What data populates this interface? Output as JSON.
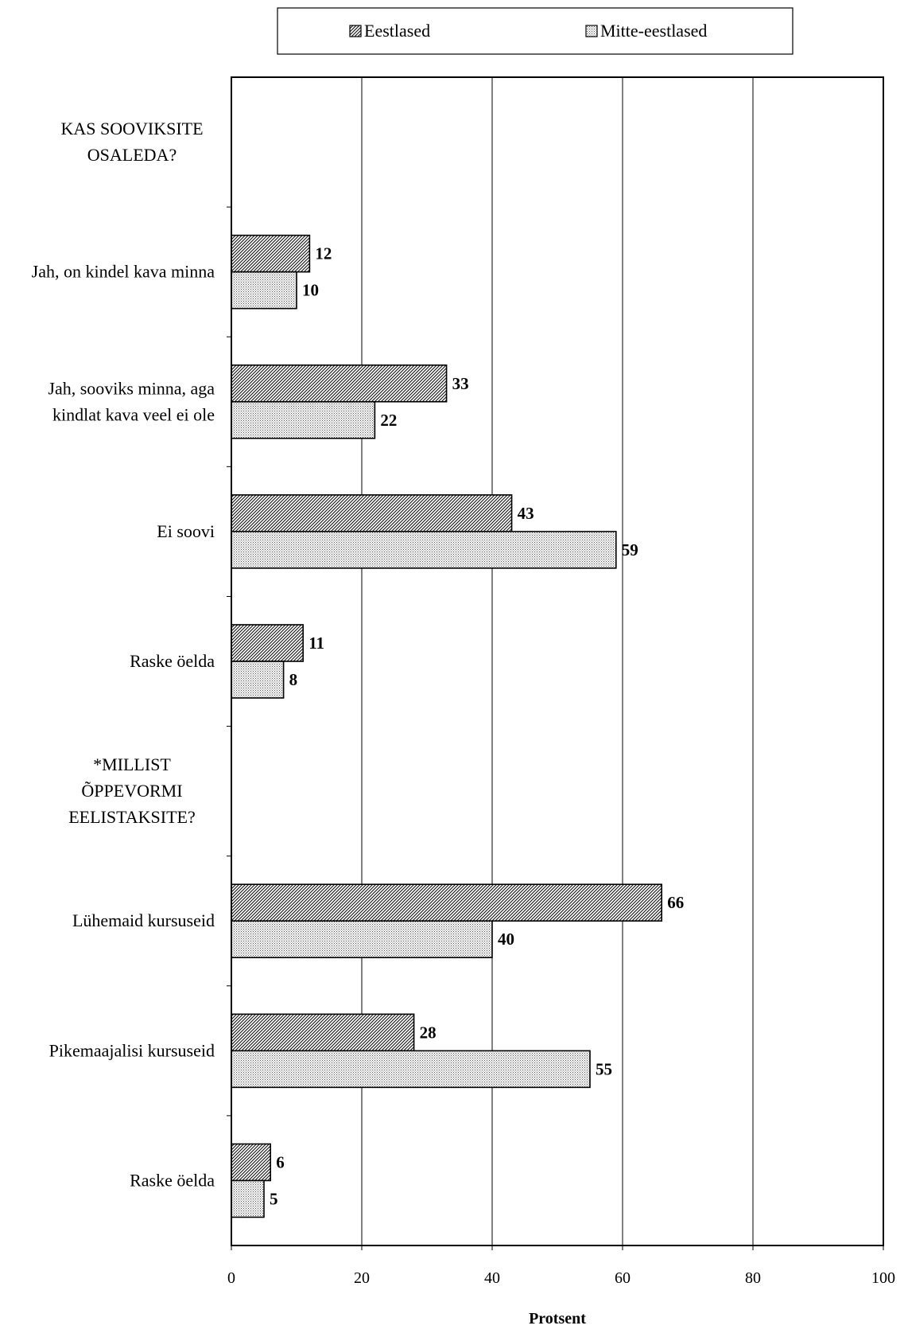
{
  "chart_data": {
    "type": "bar",
    "orientation": "horizontal",
    "title": "",
    "xlabel": "Protsent",
    "ylabel": "",
    "xlim": [
      0,
      100
    ],
    "x_ticks": [
      "0",
      "20",
      "40",
      "60",
      "80",
      "100"
    ],
    "grid": "vertical",
    "legend_position": "top",
    "series": [
      {
        "name": "Eestlased",
        "pattern": "hatch",
        "color": "#555555"
      },
      {
        "name": "Mitte-eestlased",
        "pattern": "dots",
        "color": "#bbbbbb"
      }
    ],
    "categories": [
      {
        "label": "KAS SOOVIKSITE OSALEDA?",
        "header": true,
        "values": [
          null,
          null
        ]
      },
      {
        "label": "Jah, on kindel kava minna",
        "values": [
          12,
          10
        ]
      },
      {
        "label": "Jah, sooviks minna, aga kindlat kava veel ei ole",
        "values": [
          33,
          22
        ]
      },
      {
        "label": "Ei soovi",
        "values": [
          43,
          59
        ]
      },
      {
        "label": "Raske öelda",
        "values": [
          11,
          8
        ]
      },
      {
        "label": "*MILLIST ÕPPEVORMI EELISTAKSITE?",
        "header": true,
        "values": [
          null,
          null
        ]
      },
      {
        "label": "Lühemaid kursuseid",
        "values": [
          66,
          40
        ]
      },
      {
        "label": "Pikemaajalisi kursuseid",
        "values": [
          28,
          55
        ]
      },
      {
        "label": "Raske öelda",
        "values": [
          6,
          5
        ]
      }
    ]
  }
}
